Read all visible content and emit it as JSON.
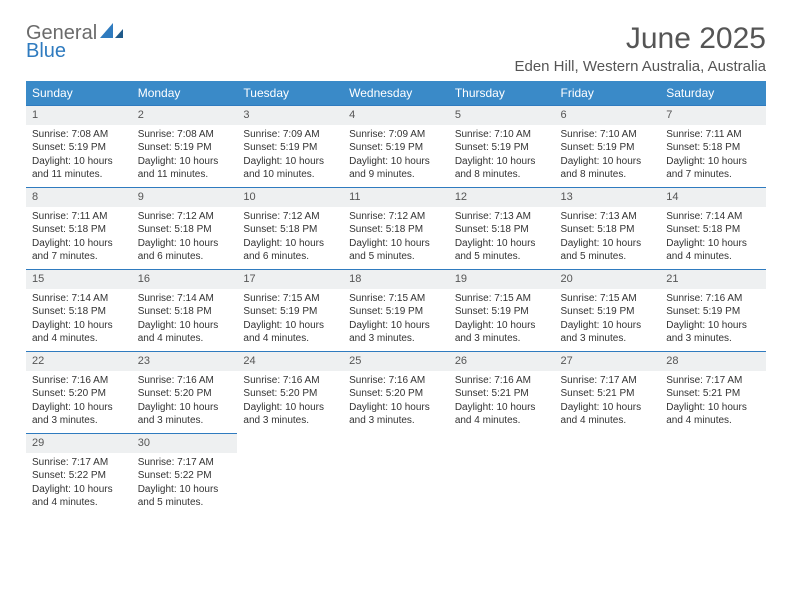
{
  "brand": {
    "line1": "General",
    "line2": "Blue"
  },
  "title": "June 2025",
  "location": "Eden Hill, Western Australia, Australia",
  "colors": {
    "header_bg": "#3a8ac8",
    "header_text": "#ffffff",
    "daynum_bg": "#eef0f1",
    "daynum_border": "#2f7bbf",
    "page_bg": "#ffffff",
    "text": "#333333",
    "brand_gray": "#6b6b6b",
    "brand_blue": "#2f7bbf"
  },
  "weekdays": [
    "Sunday",
    "Monday",
    "Tuesday",
    "Wednesday",
    "Thursday",
    "Friday",
    "Saturday"
  ],
  "weeks": [
    [
      {
        "n": "1",
        "sr": "Sunrise: 7:08 AM",
        "ss": "Sunset: 5:19 PM",
        "dl": "Daylight: 10 hours and 11 minutes."
      },
      {
        "n": "2",
        "sr": "Sunrise: 7:08 AM",
        "ss": "Sunset: 5:19 PM",
        "dl": "Daylight: 10 hours and 11 minutes."
      },
      {
        "n": "3",
        "sr": "Sunrise: 7:09 AM",
        "ss": "Sunset: 5:19 PM",
        "dl": "Daylight: 10 hours and 10 minutes."
      },
      {
        "n": "4",
        "sr": "Sunrise: 7:09 AM",
        "ss": "Sunset: 5:19 PM",
        "dl": "Daylight: 10 hours and 9 minutes."
      },
      {
        "n": "5",
        "sr": "Sunrise: 7:10 AM",
        "ss": "Sunset: 5:19 PM",
        "dl": "Daylight: 10 hours and 8 minutes."
      },
      {
        "n": "6",
        "sr": "Sunrise: 7:10 AM",
        "ss": "Sunset: 5:19 PM",
        "dl": "Daylight: 10 hours and 8 minutes."
      },
      {
        "n": "7",
        "sr": "Sunrise: 7:11 AM",
        "ss": "Sunset: 5:18 PM",
        "dl": "Daylight: 10 hours and 7 minutes."
      }
    ],
    [
      {
        "n": "8",
        "sr": "Sunrise: 7:11 AM",
        "ss": "Sunset: 5:18 PM",
        "dl": "Daylight: 10 hours and 7 minutes."
      },
      {
        "n": "9",
        "sr": "Sunrise: 7:12 AM",
        "ss": "Sunset: 5:18 PM",
        "dl": "Daylight: 10 hours and 6 minutes."
      },
      {
        "n": "10",
        "sr": "Sunrise: 7:12 AM",
        "ss": "Sunset: 5:18 PM",
        "dl": "Daylight: 10 hours and 6 minutes."
      },
      {
        "n": "11",
        "sr": "Sunrise: 7:12 AM",
        "ss": "Sunset: 5:18 PM",
        "dl": "Daylight: 10 hours and 5 minutes."
      },
      {
        "n": "12",
        "sr": "Sunrise: 7:13 AM",
        "ss": "Sunset: 5:18 PM",
        "dl": "Daylight: 10 hours and 5 minutes."
      },
      {
        "n": "13",
        "sr": "Sunrise: 7:13 AM",
        "ss": "Sunset: 5:18 PM",
        "dl": "Daylight: 10 hours and 5 minutes."
      },
      {
        "n": "14",
        "sr": "Sunrise: 7:14 AM",
        "ss": "Sunset: 5:18 PM",
        "dl": "Daylight: 10 hours and 4 minutes."
      }
    ],
    [
      {
        "n": "15",
        "sr": "Sunrise: 7:14 AM",
        "ss": "Sunset: 5:18 PM",
        "dl": "Daylight: 10 hours and 4 minutes."
      },
      {
        "n": "16",
        "sr": "Sunrise: 7:14 AM",
        "ss": "Sunset: 5:18 PM",
        "dl": "Daylight: 10 hours and 4 minutes."
      },
      {
        "n": "17",
        "sr": "Sunrise: 7:15 AM",
        "ss": "Sunset: 5:19 PM",
        "dl": "Daylight: 10 hours and 4 minutes."
      },
      {
        "n": "18",
        "sr": "Sunrise: 7:15 AM",
        "ss": "Sunset: 5:19 PM",
        "dl": "Daylight: 10 hours and 3 minutes."
      },
      {
        "n": "19",
        "sr": "Sunrise: 7:15 AM",
        "ss": "Sunset: 5:19 PM",
        "dl": "Daylight: 10 hours and 3 minutes."
      },
      {
        "n": "20",
        "sr": "Sunrise: 7:15 AM",
        "ss": "Sunset: 5:19 PM",
        "dl": "Daylight: 10 hours and 3 minutes."
      },
      {
        "n": "21",
        "sr": "Sunrise: 7:16 AM",
        "ss": "Sunset: 5:19 PM",
        "dl": "Daylight: 10 hours and 3 minutes."
      }
    ],
    [
      {
        "n": "22",
        "sr": "Sunrise: 7:16 AM",
        "ss": "Sunset: 5:20 PM",
        "dl": "Daylight: 10 hours and 3 minutes."
      },
      {
        "n": "23",
        "sr": "Sunrise: 7:16 AM",
        "ss": "Sunset: 5:20 PM",
        "dl": "Daylight: 10 hours and 3 minutes."
      },
      {
        "n": "24",
        "sr": "Sunrise: 7:16 AM",
        "ss": "Sunset: 5:20 PM",
        "dl": "Daylight: 10 hours and 3 minutes."
      },
      {
        "n": "25",
        "sr": "Sunrise: 7:16 AM",
        "ss": "Sunset: 5:20 PM",
        "dl": "Daylight: 10 hours and 3 minutes."
      },
      {
        "n": "26",
        "sr": "Sunrise: 7:16 AM",
        "ss": "Sunset: 5:21 PM",
        "dl": "Daylight: 10 hours and 4 minutes."
      },
      {
        "n": "27",
        "sr": "Sunrise: 7:17 AM",
        "ss": "Sunset: 5:21 PM",
        "dl": "Daylight: 10 hours and 4 minutes."
      },
      {
        "n": "28",
        "sr": "Sunrise: 7:17 AM",
        "ss": "Sunset: 5:21 PM",
        "dl": "Daylight: 10 hours and 4 minutes."
      }
    ],
    [
      {
        "n": "29",
        "sr": "Sunrise: 7:17 AM",
        "ss": "Sunset: 5:22 PM",
        "dl": "Daylight: 10 hours and 4 minutes."
      },
      {
        "n": "30",
        "sr": "Sunrise: 7:17 AM",
        "ss": "Sunset: 5:22 PM",
        "dl": "Daylight: 10 hours and 5 minutes."
      },
      {
        "empty": true
      },
      {
        "empty": true
      },
      {
        "empty": true
      },
      {
        "empty": true
      },
      {
        "empty": true
      }
    ]
  ]
}
